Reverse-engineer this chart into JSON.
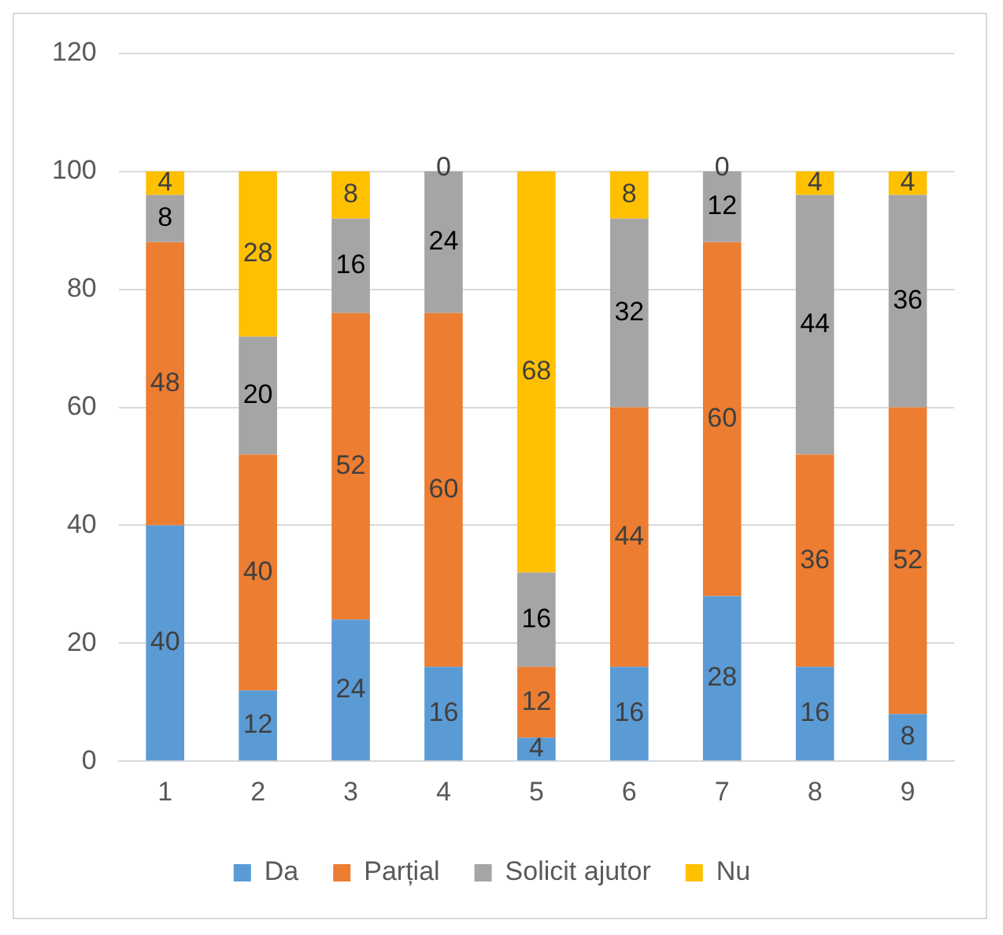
{
  "chart_data": {
    "type": "bar",
    "stacked": true,
    "categories": [
      "1",
      "2",
      "3",
      "4",
      "5",
      "6",
      "7",
      "8",
      "9"
    ],
    "series": [
      {
        "name": "Da",
        "color": "#5b9bd5",
        "values": [
          40,
          12,
          24,
          16,
          4,
          16,
          28,
          16,
          8
        ]
      },
      {
        "name": "Parțial",
        "color": "#ed7d31",
        "values": [
          48,
          40,
          52,
          60,
          12,
          44,
          60,
          36,
          52
        ]
      },
      {
        "name": "Solicit ajutor",
        "color": "#a5a5a5",
        "values": [
          8,
          20,
          16,
          24,
          16,
          32,
          12,
          44,
          36
        ]
      },
      {
        "name": "Nu",
        "color": "#ffc000",
        "values": [
          4,
          28,
          8,
          0,
          68,
          8,
          0,
          4,
          4
        ]
      }
    ],
    "ylim": [
      0,
      120
    ],
    "yticks": [
      0,
      20,
      40,
      60,
      80,
      100,
      120
    ],
    "grid": "y",
    "legend": "bottom",
    "data_labels": true
  }
}
